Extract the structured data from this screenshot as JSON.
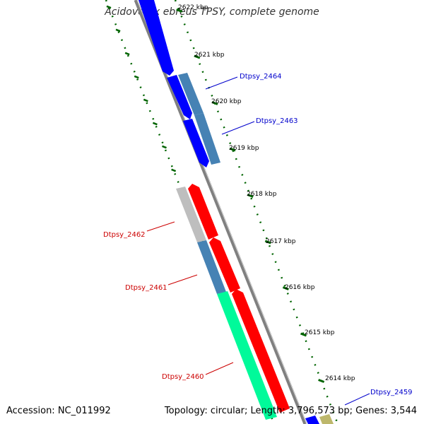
{
  "title": "Acidovorax ebreus TPSY, complete genome",
  "accession_text": "Accession: NC_011992",
  "summary_text": "Topology: circular; Length: 3,796,573 bp; Genes: 3,544",
  "colors": {
    "forward_gene": "#ff0000",
    "reverse_gene": "#0000ff",
    "cds_blue": "#4682b4",
    "cds_gray": "#bebebe",
    "cds_green": "#00fa9a",
    "cds_yellow": "#bdb76b",
    "backbone": "#808080",
    "gc_skew": "#006400",
    "label_forward": "#cc0000",
    "label_reverse": "#0000cc"
  },
  "scale_ticks": [
    {
      "label": "2622 kbp"
    },
    {
      "label": "2621 kbp"
    },
    {
      "label": "2620 kbp"
    },
    {
      "label": "2619 kbp"
    },
    {
      "label": "2618 kbp"
    },
    {
      "label": "2617 kbp"
    },
    {
      "label": "2616 kbp"
    },
    {
      "label": "2615 kbp"
    },
    {
      "label": "2614 kbp"
    }
  ],
  "gene_labels": [
    {
      "name": "Dtpsy_2464",
      "strand": "reverse"
    },
    {
      "name": "Dtpsy_2463",
      "strand": "reverse"
    },
    {
      "name": "Dtpsy_2462",
      "strand": "forward"
    },
    {
      "name": "Dtpsy_2461",
      "strand": "forward"
    },
    {
      "name": "Dtpsy_2460",
      "strand": "forward"
    },
    {
      "name": "Dtpsy_2459",
      "strand": "reverse"
    }
  ]
}
